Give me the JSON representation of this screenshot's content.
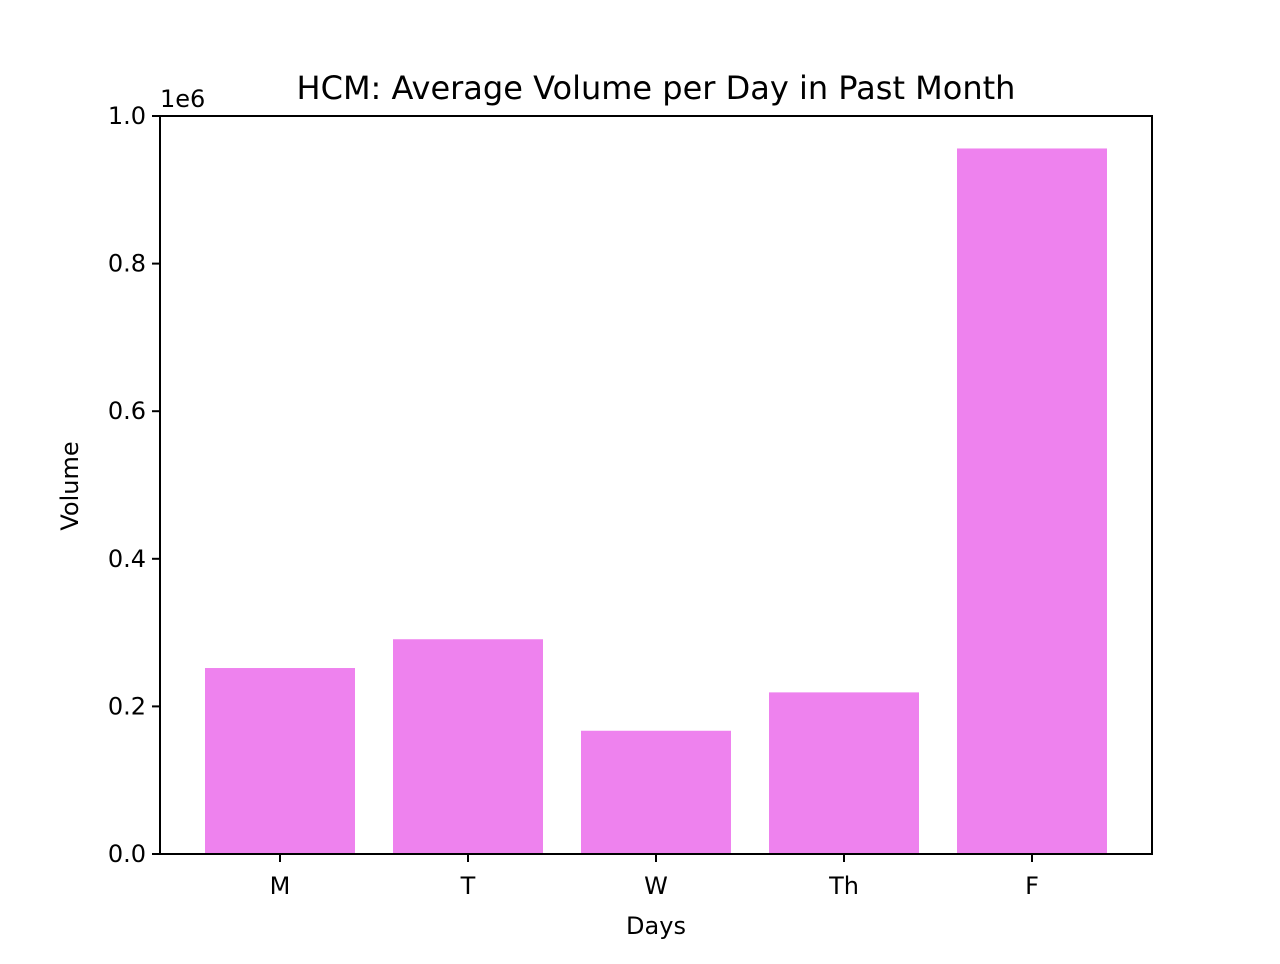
{
  "chart_data": {
    "type": "bar",
    "title": "HCM: Average Volume per Day in Past Month",
    "xlabel": "Days",
    "ylabel": "Volume",
    "categories": [
      "M",
      "T",
      "W",
      "Th",
      "F"
    ],
    "values": [
      252000,
      291000,
      167000,
      219000,
      956000
    ],
    "ylim": [
      0,
      1000000
    ],
    "yticks": [
      {
        "value": 0,
        "label": "0.0"
      },
      {
        "value": 200000,
        "label": "0.2"
      },
      {
        "value": 400000,
        "label": "0.4"
      },
      {
        "value": 600000,
        "label": "0.6"
      },
      {
        "value": 800000,
        "label": "0.8"
      },
      {
        "value": 1000000,
        "label": "1.0"
      }
    ],
    "y_offset_label": "1e6",
    "bar_color": "#ee82ee",
    "grid": false,
    "legend": "none"
  }
}
